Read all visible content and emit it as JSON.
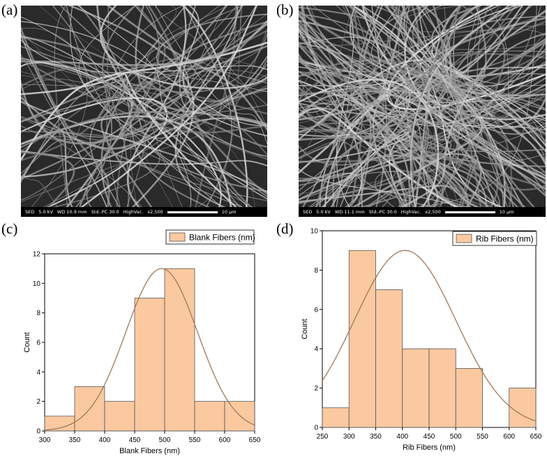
{
  "panels": {
    "a": "(a)",
    "b": "(b)",
    "c": "(c)",
    "d": "(d)"
  },
  "sem_images": [
    {
      "fields": [
        "SED",
        "5.0 kV",
        "WD 10.9 mm",
        "Std.-PC 30.0",
        "HighVac.",
        "x2,500"
      ],
      "scale_label": "10 µm"
    },
    {
      "fields": [
        "SED",
        "5.0 kV",
        "WD 11.1 mm",
        "Std.-PC 30.0",
        "HighVac.",
        "x2,500"
      ],
      "scale_label": "10 µm"
    }
  ],
  "chart_data": [
    {
      "type": "bar",
      "variant": "histogram",
      "legend": "Blank Fibers (nm)",
      "legend_position": "top-right",
      "xlabel": "Blank Fibers (nm)",
      "ylabel": "Count",
      "xlim": [
        300,
        650
      ],
      "ylim": [
        0,
        12
      ],
      "xticks": [
        300,
        350,
        400,
        450,
        500,
        550,
        600,
        650
      ],
      "yticks": [
        0,
        2,
        4,
        6,
        8,
        10,
        12
      ],
      "bins": [
        [
          300,
          350
        ],
        [
          350,
          400
        ],
        [
          400,
          450
        ],
        [
          450,
          500
        ],
        [
          500,
          550
        ],
        [
          550,
          600
        ],
        [
          600,
          650
        ]
      ],
      "counts": [
        1,
        3,
        2,
        9,
        11,
        2,
        2
      ],
      "normal_fit": {
        "mean": 495,
        "sd": 60,
        "peak": 11
      },
      "bar_color": "#fac9a0",
      "curve_color": "#a0785a"
    },
    {
      "type": "bar",
      "variant": "histogram",
      "legend": "Rib Fibers (nm)",
      "legend_position": "top-right",
      "xlabel": "Rib Fibers (nm)",
      "ylabel": "Count",
      "xlim": [
        250,
        650
      ],
      "ylim": [
        0,
        10
      ],
      "xticks": [
        250,
        300,
        350,
        400,
        450,
        500,
        550,
        600,
        650
      ],
      "yticks": [
        0,
        2,
        4,
        6,
        8,
        10
      ],
      "bins": [
        [
          250,
          300
        ],
        [
          300,
          350
        ],
        [
          350,
          400
        ],
        [
          400,
          450
        ],
        [
          450,
          500
        ],
        [
          500,
          550
        ],
        [
          550,
          600
        ],
        [
          600,
          650
        ]
      ],
      "counts": [
        1,
        9,
        7,
        4,
        4,
        3,
        0,
        2
      ],
      "normal_fit": {
        "mean": 405,
        "sd": 95,
        "peak": 9
      },
      "bar_color": "#fac9a0",
      "curve_color": "#a0785a"
    }
  ]
}
